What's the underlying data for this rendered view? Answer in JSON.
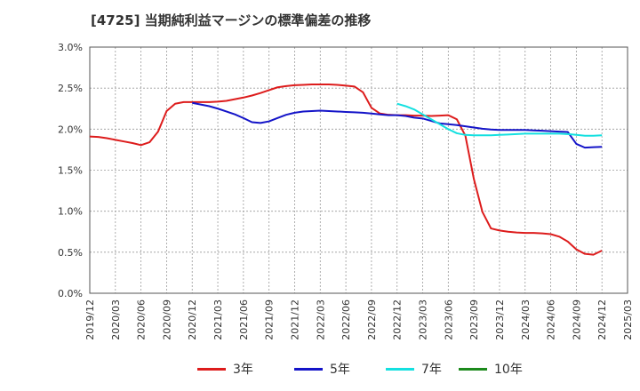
{
  "title": "[4725]  当期純利益マージンの標準偏差の推移",
  "chart_data": {
    "type": "line",
    "title": "[4725]  当期純利益マージンの標準偏差の推移",
    "xlabel": "",
    "ylabel": "",
    "ylim": [
      0,
      3.0
    ],
    "y_ticks": [
      "0.0%",
      "0.5%",
      "1.0%",
      "1.5%",
      "2.0%",
      "2.5%",
      "3.0%"
    ],
    "x_ticks": [
      "2019/12",
      "2020/03",
      "2020/06",
      "2020/09",
      "2020/12",
      "2021/03",
      "2021/06",
      "2021/09",
      "2021/12",
      "2022/03",
      "2022/06",
      "2022/09",
      "2022/12",
      "2023/03",
      "2023/06",
      "2023/09",
      "2023/12",
      "2024/03",
      "2024/06",
      "2024/09",
      "2024/12",
      "2025/03"
    ],
    "grid": true,
    "legend_position": "bottom",
    "series": [
      {
        "name": "3年",
        "color": "#dd1c1c",
        "points": [
          [
            "2019/12",
            1.91
          ],
          [
            "2020/01",
            1.905
          ],
          [
            "2020/02",
            1.89
          ],
          [
            "2020/03",
            1.87
          ],
          [
            "2020/04",
            1.85
          ],
          [
            "2020/05",
            1.83
          ],
          [
            "2020/06",
            1.805
          ],
          [
            "2020/07",
            1.84
          ],
          [
            "2020/08",
            1.97
          ],
          [
            "2020/09",
            2.22
          ],
          [
            "2020/10",
            2.31
          ],
          [
            "2020/11",
            2.33
          ],
          [
            "2020/12",
            2.33
          ],
          [
            "2021/01",
            2.33
          ],
          [
            "2021/02",
            2.33
          ],
          [
            "2021/03",
            2.335
          ],
          [
            "2021/04",
            2.345
          ],
          [
            "2021/05",
            2.365
          ],
          [
            "2021/06",
            2.385
          ],
          [
            "2021/07",
            2.41
          ],
          [
            "2021/08",
            2.44
          ],
          [
            "2021/09",
            2.475
          ],
          [
            "2021/10",
            2.51
          ],
          [
            "2021/11",
            2.525
          ],
          [
            "2021/12",
            2.535
          ],
          [
            "2022/01",
            2.54
          ],
          [
            "2022/02",
            2.545
          ],
          [
            "2022/03",
            2.545
          ],
          [
            "2022/04",
            2.545
          ],
          [
            "2022/05",
            2.54
          ],
          [
            "2022/06",
            2.53
          ],
          [
            "2022/07",
            2.52
          ],
          [
            "2022/08",
            2.45
          ],
          [
            "2022/09",
            2.26
          ],
          [
            "2022/10",
            2.19
          ],
          [
            "2022/11",
            2.175
          ],
          [
            "2022/12",
            2.17
          ],
          [
            "2023/01",
            2.17
          ],
          [
            "2023/02",
            2.165
          ],
          [
            "2023/03",
            2.165
          ],
          [
            "2023/04",
            2.16
          ],
          [
            "2023/05",
            2.165
          ],
          [
            "2023/06",
            2.17
          ],
          [
            "2023/07",
            2.12
          ],
          [
            "2023/08",
            1.92
          ],
          [
            "2023/09",
            1.39
          ],
          [
            "2023/10",
            0.99
          ],
          [
            "2023/11",
            0.79
          ],
          [
            "2023/12",
            0.765
          ],
          [
            "2024/01",
            0.75
          ],
          [
            "2024/02",
            0.74
          ],
          [
            "2024/03",
            0.735
          ],
          [
            "2024/04",
            0.735
          ],
          [
            "2024/05",
            0.73
          ],
          [
            "2024/06",
            0.72
          ],
          [
            "2024/07",
            0.69
          ],
          [
            "2024/08",
            0.63
          ],
          [
            "2024/09",
            0.535
          ],
          [
            "2024/10",
            0.48
          ],
          [
            "2024/11",
            0.47
          ],
          [
            "2024/12",
            0.52
          ]
        ]
      },
      {
        "name": "5年",
        "color": "#1414c8",
        "points": [
          [
            "2020/12",
            2.32
          ],
          [
            "2021/01",
            2.3
          ],
          [
            "2021/02",
            2.28
          ],
          [
            "2021/03",
            2.25
          ],
          [
            "2021/04",
            2.215
          ],
          [
            "2021/05",
            2.18
          ],
          [
            "2021/06",
            2.135
          ],
          [
            "2021/07",
            2.085
          ],
          [
            "2021/08",
            2.075
          ],
          [
            "2021/09",
            2.095
          ],
          [
            "2021/10",
            2.135
          ],
          [
            "2021/11",
            2.175
          ],
          [
            "2021/12",
            2.2
          ],
          [
            "2022/01",
            2.215
          ],
          [
            "2022/02",
            2.22
          ],
          [
            "2022/03",
            2.225
          ],
          [
            "2022/04",
            2.22
          ],
          [
            "2022/05",
            2.215
          ],
          [
            "2022/06",
            2.21
          ],
          [
            "2022/07",
            2.205
          ],
          [
            "2022/08",
            2.2
          ],
          [
            "2022/09",
            2.19
          ],
          [
            "2022/10",
            2.18
          ],
          [
            "2022/11",
            2.17
          ],
          [
            "2022/12",
            2.17
          ],
          [
            "2023/01",
            2.16
          ],
          [
            "2023/02",
            2.14
          ],
          [
            "2023/03",
            2.13
          ],
          [
            "2023/04",
            2.1
          ],
          [
            "2023/05",
            2.07
          ],
          [
            "2023/06",
            2.06
          ],
          [
            "2023/07",
            2.05
          ],
          [
            "2023/08",
            2.035
          ],
          [
            "2023/09",
            2.02
          ],
          [
            "2023/10",
            2.005
          ],
          [
            "2023/11",
            1.995
          ],
          [
            "2023/12",
            1.99
          ],
          [
            "2024/01",
            1.99
          ],
          [
            "2024/02",
            1.99
          ],
          [
            "2024/03",
            1.99
          ],
          [
            "2024/04",
            1.985
          ],
          [
            "2024/05",
            1.98
          ],
          [
            "2024/06",
            1.975
          ],
          [
            "2024/07",
            1.97
          ],
          [
            "2024/08",
            1.965
          ],
          [
            "2024/09",
            1.82
          ],
          [
            "2024/10",
            1.775
          ],
          [
            "2024/11",
            1.78
          ],
          [
            "2024/12",
            1.785
          ]
        ]
      },
      {
        "name": "7年",
        "color": "#14e0e0",
        "points": [
          [
            "2022/12",
            2.31
          ],
          [
            "2023/01",
            2.28
          ],
          [
            "2023/02",
            2.24
          ],
          [
            "2023/03",
            2.18
          ],
          [
            "2023/04",
            2.12
          ],
          [
            "2023/05",
            2.06
          ],
          [
            "2023/06",
            2.0
          ],
          [
            "2023/07",
            1.95
          ],
          [
            "2023/08",
            1.93
          ],
          [
            "2023/09",
            1.925
          ],
          [
            "2023/10",
            1.925
          ],
          [
            "2023/11",
            1.925
          ],
          [
            "2023/12",
            1.93
          ],
          [
            "2024/01",
            1.935
          ],
          [
            "2024/02",
            1.94
          ],
          [
            "2024/03",
            1.945
          ],
          [
            "2024/04",
            1.945
          ],
          [
            "2024/05",
            1.945
          ],
          [
            "2024/06",
            1.945
          ],
          [
            "2024/07",
            1.945
          ],
          [
            "2024/08",
            1.94
          ],
          [
            "2024/09",
            1.93
          ],
          [
            "2024/10",
            1.92
          ],
          [
            "2024/11",
            1.92
          ],
          [
            "2024/12",
            1.925
          ]
        ]
      },
      {
        "name": "10年",
        "color": "#1c8a1c",
        "points": []
      }
    ]
  }
}
